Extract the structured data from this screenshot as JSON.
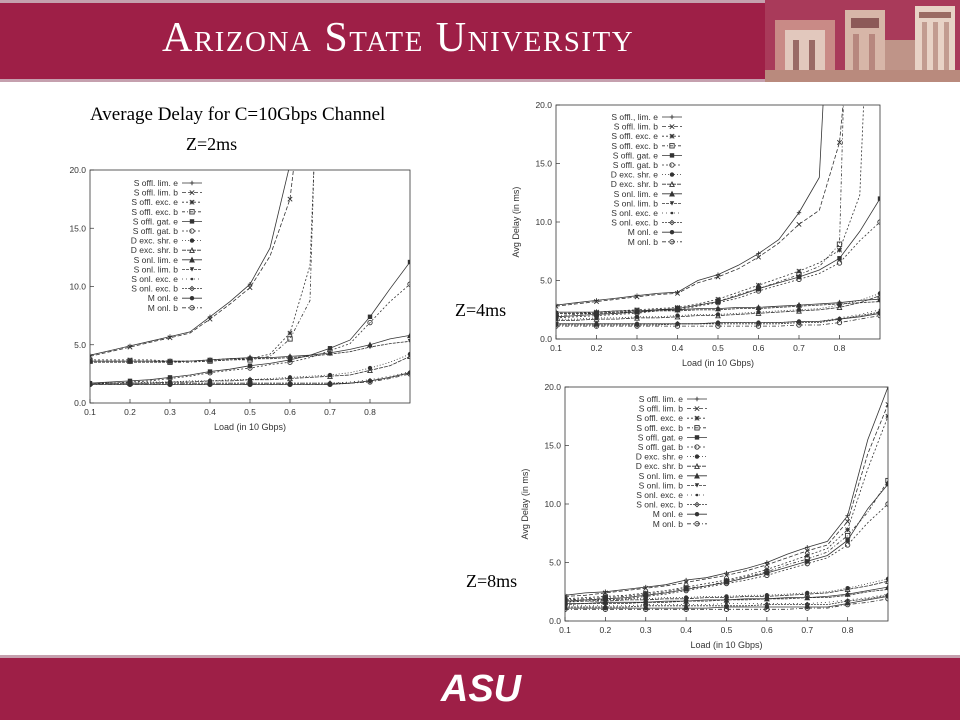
{
  "header": {
    "title": "Arizona State University"
  },
  "slide": {
    "title": "Average Delay for C=10Gbps Channel"
  },
  "footer": {
    "logo_text": "ASU"
  },
  "colors": {
    "maroon": "#9e1f47",
    "stripe": "#c5a0ae",
    "plot_ink": "#333333"
  },
  "chart_data": [
    {
      "type": "line",
      "caption": "Z=2ms",
      "xlabel": "Load (in 10 Gbps)",
      "ylabel": "",
      "xlim": [
        0.1,
        0.9
      ],
      "ylim": [
        0,
        20
      ],
      "xticks": [
        "0.1",
        "0.2",
        "0.3",
        "0.4",
        "0.5",
        "0.6",
        "0.7",
        "0.8"
      ],
      "yticks": [
        "0.0",
        "5.0",
        "10.0",
        "15.0",
        "20.0"
      ],
      "legend_position": "top-left",
      "grid": false,
      "x": [
        0.1,
        0.15,
        0.2,
        0.25,
        0.3,
        0.35,
        0.4,
        0.45,
        0.5,
        0.55,
        0.6,
        0.65,
        0.7,
        0.75,
        0.8,
        0.85,
        0.9
      ],
      "series": [
        {
          "name": "S offl. lim. e",
          "values": [
            4.1,
            4.5,
            4.9,
            5.3,
            5.7,
            6.1,
            7.4,
            8.7,
            10.2,
            13.3,
            20.5,
            null,
            null,
            null,
            null,
            null,
            null
          ]
        },
        {
          "name": "S offl. lim. b",
          "values": [
            4.0,
            4.4,
            4.8,
            5.2,
            5.6,
            6.0,
            7.2,
            8.5,
            9.9,
            12.6,
            17.5,
            null,
            null,
            null,
            null,
            null,
            null
          ]
        },
        {
          "name": "S offl. exc. e",
          "values": [
            3.7,
            3.7,
            3.7,
            3.7,
            3.6,
            3.6,
            3.7,
            3.8,
            3.8,
            4.2,
            6.0,
            11.8,
            null,
            null,
            null,
            null,
            null
          ]
        },
        {
          "name": "S offl. exc. b",
          "values": [
            3.6,
            3.6,
            3.6,
            3.6,
            3.5,
            3.5,
            3.6,
            3.7,
            3.7,
            4.0,
            5.5,
            8.8,
            null,
            null,
            null,
            null,
            null
          ]
        },
        {
          "name": "S offl. gat. e",
          "values": [
            1.7,
            1.8,
            1.9,
            2.0,
            2.2,
            2.4,
            2.7,
            2.9,
            3.2,
            3.4,
            3.7,
            4.1,
            4.7,
            5.4,
            7.4,
            9.8,
            12.1
          ]
        },
        {
          "name": "S offl. gat. b",
          "values": [
            1.6,
            1.7,
            1.8,
            1.9,
            2.1,
            2.3,
            2.6,
            2.8,
            3.0,
            3.3,
            3.5,
            3.9,
            4.5,
            5.1,
            6.9,
            8.7,
            10.2
          ]
        },
        {
          "name": "D exc. shr. e",
          "values": [
            1.7,
            1.7,
            1.7,
            1.8,
            1.8,
            1.9,
            1.9,
            2.0,
            2.0,
            2.1,
            2.2,
            2.3,
            2.4,
            2.6,
            3.0,
            3.5,
            4.2
          ]
        },
        {
          "name": "D exc. shr. b",
          "values": [
            1.7,
            1.7,
            1.7,
            1.7,
            1.8,
            1.8,
            1.9,
            1.9,
            2.0,
            2.0,
            2.1,
            2.2,
            2.3,
            2.4,
            2.8,
            3.2,
            4.0
          ]
        },
        {
          "name": "S onl. lim. e",
          "values": [
            3.6,
            3.6,
            3.6,
            3.6,
            3.6,
            3.6,
            3.7,
            3.8,
            3.9,
            3.9,
            4.0,
            4.1,
            4.3,
            4.6,
            5.0,
            5.5,
            5.8
          ]
        },
        {
          "name": "S onl. lim. b",
          "values": [
            3.5,
            3.5,
            3.5,
            3.5,
            3.5,
            3.6,
            3.6,
            3.7,
            3.8,
            3.8,
            3.9,
            4.0,
            4.2,
            4.4,
            4.8,
            5.1,
            5.3
          ]
        },
        {
          "name": "S onl. exc. e",
          "values": [
            1.7,
            1.7,
            1.7,
            1.7,
            1.7,
            1.7,
            1.7,
            1.7,
            1.7,
            1.7,
            1.7,
            1.7,
            1.7,
            1.8,
            2.0,
            2.3,
            2.7
          ]
        },
        {
          "name": "S onl. exc. b",
          "values": [
            1.7,
            1.7,
            1.7,
            1.7,
            1.7,
            1.7,
            1.7,
            1.7,
            1.7,
            1.7,
            1.7,
            1.7,
            1.7,
            1.7,
            1.9,
            2.2,
            2.6
          ]
        },
        {
          "name": "M onl. e",
          "values": [
            1.6,
            1.6,
            1.6,
            1.6,
            1.6,
            1.6,
            1.6,
            1.6,
            1.6,
            1.6,
            1.6,
            1.6,
            1.6,
            1.7,
            1.9,
            2.2,
            2.6
          ]
        },
        {
          "name": "M onl. b",
          "values": [
            1.6,
            1.6,
            1.6,
            1.6,
            1.6,
            1.6,
            1.6,
            1.6,
            1.6,
            1.6,
            1.6,
            1.6,
            1.6,
            1.7,
            1.8,
            2.1,
            2.5
          ]
        }
      ]
    },
    {
      "type": "line",
      "caption": "Z=4ms",
      "xlabel": "Load (in 10 Gbps)",
      "ylabel": "Avg Delay (in ms)",
      "xlim": [
        0.1,
        0.9
      ],
      "ylim": [
        0,
        20
      ],
      "xticks": [
        "0.1",
        "0.2",
        "0.3",
        "0.4",
        "0.5",
        "0.6",
        "0.7",
        "0.8"
      ],
      "yticks": [
        "0.0",
        "5.0",
        "10.0",
        "15.0",
        "20.0"
      ],
      "legend_position": "top-left",
      "grid": false,
      "x": [
        0.1,
        0.15,
        0.2,
        0.25,
        0.3,
        0.35,
        0.4,
        0.45,
        0.5,
        0.55,
        0.6,
        0.65,
        0.7,
        0.75,
        0.8,
        0.85,
        0.9
      ],
      "series": [
        {
          "name": "S offl., lim. e",
          "values": [
            2.9,
            3.1,
            3.3,
            3.5,
            3.7,
            3.9,
            4.0,
            5.0,
            5.5,
            6.3,
            7.3,
            8.5,
            10.8,
            13.8,
            null,
            null,
            null
          ]
        },
        {
          "name": "S offl. lim. b",
          "values": [
            2.8,
            3.0,
            3.2,
            3.4,
            3.6,
            3.8,
            3.9,
            4.8,
            5.3,
            6.0,
            7.0,
            8.2,
            9.8,
            11.0,
            16.8,
            null,
            null
          ]
        },
        {
          "name": "S offl. exc. e",
          "values": [
            2.2,
            2.2,
            2.3,
            2.4,
            2.5,
            2.6,
            2.7,
            3.0,
            3.4,
            4.0,
            4.6,
            5.2,
            5.8,
            6.5,
            7.6,
            12.3,
            null
          ]
        },
        {
          "name": "S offl. exc. b",
          "values": [
            2.0,
            2.1,
            2.2,
            2.3,
            2.4,
            2.5,
            2.6,
            2.9,
            3.2,
            3.8,
            4.3,
            4.9,
            5.5,
            6.2,
            8.1,
            null,
            null
          ]
        },
        {
          "name": "S offl. gat. e",
          "values": [
            1.9,
            2.0,
            2.1,
            2.2,
            2.3,
            2.5,
            2.6,
            2.9,
            3.2,
            3.7,
            4.3,
            4.8,
            5.3,
            5.9,
            6.9,
            9.2,
            12.0
          ]
        },
        {
          "name": "S offl. gat. b",
          "values": [
            1.8,
            1.9,
            2.0,
            2.1,
            2.2,
            2.4,
            2.5,
            2.8,
            3.1,
            3.5,
            4.1,
            4.6,
            5.1,
            5.6,
            6.5,
            8.4,
            10.0
          ]
        },
        {
          "name": "D exc. shr. e",
          "values": [
            1.7,
            1.7,
            1.8,
            1.8,
            1.9,
            1.9,
            2.0,
            2.1,
            2.1,
            2.2,
            2.3,
            2.4,
            2.5,
            2.6,
            2.9,
            3.3,
            3.9
          ]
        },
        {
          "name": "D exc. shr. b",
          "values": [
            1.6,
            1.6,
            1.7,
            1.7,
            1.8,
            1.8,
            1.9,
            2.0,
            2.0,
            2.1,
            2.2,
            2.3,
            2.4,
            2.5,
            2.7,
            3.1,
            3.7
          ]
        },
        {
          "name": "S onl. lim. e",
          "values": [
            2.3,
            2.3,
            2.3,
            2.4,
            2.4,
            2.5,
            2.5,
            2.6,
            2.6,
            2.7,
            2.7,
            2.8,
            2.9,
            3.0,
            3.1,
            3.3,
            3.4
          ]
        },
        {
          "name": "S onl. lim. b",
          "values": [
            2.2,
            2.2,
            2.2,
            2.3,
            2.3,
            2.4,
            2.4,
            2.5,
            2.5,
            2.6,
            2.6,
            2.7,
            2.8,
            2.9,
            3.0,
            3.1,
            3.2
          ]
        },
        {
          "name": "S onl. exc. e",
          "values": [
            1.3,
            1.3,
            1.3,
            1.3,
            1.3,
            1.3,
            1.3,
            1.3,
            1.4,
            1.4,
            1.4,
            1.4,
            1.5,
            1.5,
            1.8,
            2.1,
            2.5
          ]
        },
        {
          "name": "S onl. exc. b",
          "values": [
            1.2,
            1.2,
            1.2,
            1.2,
            1.2,
            1.2,
            1.3,
            1.3,
            1.3,
            1.3,
            1.3,
            1.3,
            1.4,
            1.4,
            1.7,
            2.0,
            2.3
          ]
        },
        {
          "name": "M onl. e",
          "values": [
            1.3,
            1.3,
            1.3,
            1.3,
            1.3,
            1.3,
            1.3,
            1.3,
            1.4,
            1.4,
            1.4,
            1.4,
            1.5,
            1.5,
            1.7,
            1.9,
            2.2
          ]
        },
        {
          "name": "M onl. b",
          "values": [
            1.1,
            1.1,
            1.1,
            1.1,
            1.1,
            1.1,
            1.1,
            1.1,
            1.1,
            1.1,
            1.1,
            1.1,
            1.2,
            1.2,
            1.4,
            1.7,
            2.0
          ]
        }
      ]
    },
    {
      "type": "line",
      "caption": "Z=8ms",
      "xlabel": "Load (in 10 Gbps)",
      "ylabel": "Avg Delay (in ms)",
      "xlim": [
        0.1,
        0.9
      ],
      "ylim": [
        0,
        20
      ],
      "xticks": [
        "0.1",
        "0.2",
        "0.3",
        "0.4",
        "0.5",
        "0.6",
        "0.7",
        "0.8"
      ],
      "yticks": [
        "0.0",
        "5.0",
        "10.0",
        "15.0",
        "20.0"
      ],
      "legend_position": "top-left",
      "grid": false,
      "x": [
        0.1,
        0.15,
        0.2,
        0.25,
        0.3,
        0.35,
        0.4,
        0.45,
        0.5,
        0.55,
        0.6,
        0.65,
        0.7,
        0.75,
        0.8,
        0.85,
        0.9
      ],
      "series": [
        {
          "name": "S offl. lim. e",
          "values": [
            2.2,
            2.4,
            2.5,
            2.7,
            2.9,
            3.1,
            3.5,
            3.7,
            4.1,
            4.5,
            5.0,
            5.7,
            6.3,
            6.8,
            9.0,
            15.5,
            20.0
          ]
        },
        {
          "name": "S offl. lim. b",
          "values": [
            2.1,
            2.2,
            2.4,
            2.6,
            2.8,
            3.0,
            3.3,
            3.6,
            3.9,
            4.3,
            4.8,
            5.4,
            6.0,
            6.5,
            8.5,
            14.3,
            18.5
          ]
        },
        {
          "name": "S offl. exc. e",
          "values": [
            1.9,
            2.0,
            2.1,
            2.2,
            2.4,
            2.6,
            2.9,
            3.2,
            3.5,
            3.9,
            4.4,
            5.0,
            5.6,
            6.2,
            7.8,
            13.0,
            17.5
          ]
        },
        {
          "name": "S offl. exc. b",
          "values": [
            1.8,
            1.9,
            2.0,
            2.1,
            2.3,
            2.5,
            2.8,
            3.0,
            3.4,
            3.8,
            4.2,
            4.8,
            5.3,
            5.9,
            7.3,
            9.3,
            12.0
          ]
        },
        {
          "name": "S offl. gat. e",
          "values": [
            1.7,
            1.8,
            1.9,
            2.0,
            2.2,
            2.4,
            2.7,
            3.0,
            3.3,
            3.7,
            4.1,
            4.6,
            5.1,
            5.6,
            6.9,
            9.6,
            11.7
          ]
        },
        {
          "name": "S offl. gat. b",
          "values": [
            1.6,
            1.7,
            1.8,
            1.9,
            2.1,
            2.3,
            2.6,
            2.9,
            3.2,
            3.5,
            3.9,
            4.4,
            4.9,
            5.4,
            6.5,
            8.4,
            10.0
          ]
        },
        {
          "name": "D exc. shr. e",
          "values": [
            1.8,
            1.8,
            1.8,
            1.9,
            1.9,
            2.0,
            2.0,
            2.1,
            2.1,
            2.2,
            2.2,
            2.3,
            2.4,
            2.5,
            2.8,
            3.2,
            3.6
          ]
        },
        {
          "name": "D exc. shr. b",
          "values": [
            1.7,
            1.7,
            1.7,
            1.8,
            1.8,
            1.9,
            1.9,
            2.0,
            2.0,
            2.1,
            2.1,
            2.2,
            2.3,
            2.4,
            2.7,
            3.0,
            3.4
          ]
        },
        {
          "name": "S onl. lim. e",
          "values": [
            1.5,
            1.5,
            1.6,
            1.6,
            1.6,
            1.7,
            1.7,
            1.8,
            1.8,
            1.9,
            1.9,
            2.0,
            2.0,
            2.1,
            2.3,
            2.6,
            2.9
          ]
        },
        {
          "name": "S onl. lim. b",
          "values": [
            1.4,
            1.5,
            1.5,
            1.5,
            1.6,
            1.6,
            1.7,
            1.7,
            1.8,
            1.8,
            1.9,
            1.9,
            2.0,
            2.0,
            2.2,
            2.5,
            2.7
          ]
        },
        {
          "name": "S onl. exc. e",
          "values": [
            1.3,
            1.3,
            1.3,
            1.3,
            1.4,
            1.4,
            1.4,
            1.4,
            1.5,
            1.5,
            1.5,
            1.5,
            1.5,
            1.6,
            1.8,
            2.0,
            2.3
          ]
        },
        {
          "name": "S onl. exc. b",
          "values": [
            1.2,
            1.2,
            1.2,
            1.2,
            1.3,
            1.3,
            1.3,
            1.3,
            1.3,
            1.3,
            1.4,
            1.4,
            1.4,
            1.4,
            1.7,
            1.9,
            2.2
          ]
        },
        {
          "name": "M onl. e",
          "values": [
            1.1,
            1.1,
            1.1,
            1.1,
            1.1,
            1.1,
            1.1,
            1.1,
            1.2,
            1.2,
            1.2,
            1.2,
            1.2,
            1.2,
            1.5,
            1.8,
            2.1
          ]
        },
        {
          "name": "M onl. b",
          "values": [
            1.0,
            1.0,
            1.0,
            1.0,
            1.0,
            1.0,
            1.0,
            1.0,
            1.0,
            1.0,
            1.0,
            1.0,
            1.1,
            1.1,
            1.4,
            1.6,
            1.9
          ]
        }
      ]
    }
  ]
}
